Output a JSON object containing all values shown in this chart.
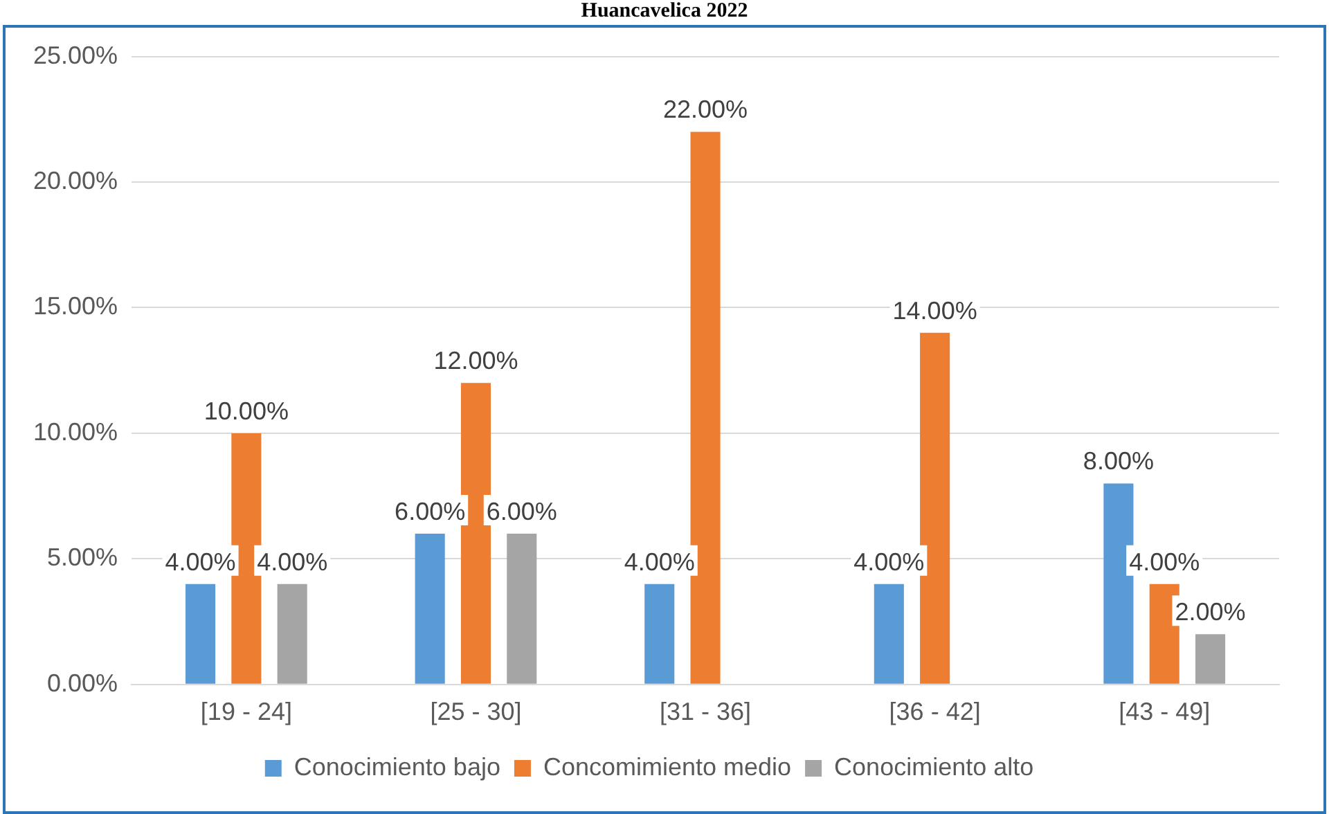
{
  "chart_data": {
    "type": "bar",
    "title": "Huancavelica 2022",
    "categories": [
      "[19 - 24]",
      "[25 - 30]",
      "[31 - 36]",
      "[36 - 42]",
      "[43 - 49]"
    ],
    "series": [
      {
        "name": "Conocimiento bajo",
        "color": "#5b9bd5",
        "values": [
          4,
          6,
          4,
          4,
          8
        ],
        "value_labels": [
          "4.00%",
          "6.00%",
          "4.00%",
          "4.00%",
          "8.00%"
        ]
      },
      {
        "name": "Concomimiento medio",
        "color": "#ed7d31",
        "values": [
          10,
          12,
          22,
          14,
          4
        ],
        "value_labels": [
          "10.00%",
          "12.00%",
          "22.00%",
          "14.00%",
          "4.00%"
        ]
      },
      {
        "name": "Conocimiento alto",
        "color": "#a5a5a5",
        "values": [
          4,
          6,
          null,
          null,
          2
        ],
        "value_labels": [
          "4.00%",
          "6.00%",
          null,
          null,
          "2.00%"
        ]
      }
    ],
    "ylim": [
      0,
      25
    ],
    "yticks": [
      {
        "value": 0,
        "label": "0.00%"
      },
      {
        "value": 5,
        "label": "5.00%"
      },
      {
        "value": 10,
        "label": "10.00%"
      },
      {
        "value": 15,
        "label": "15.00%"
      },
      {
        "value": 20,
        "label": "20.00%"
      },
      {
        "value": 25,
        "label": "25.00%"
      }
    ],
    "grid": "y",
    "legend": "bottom"
  }
}
